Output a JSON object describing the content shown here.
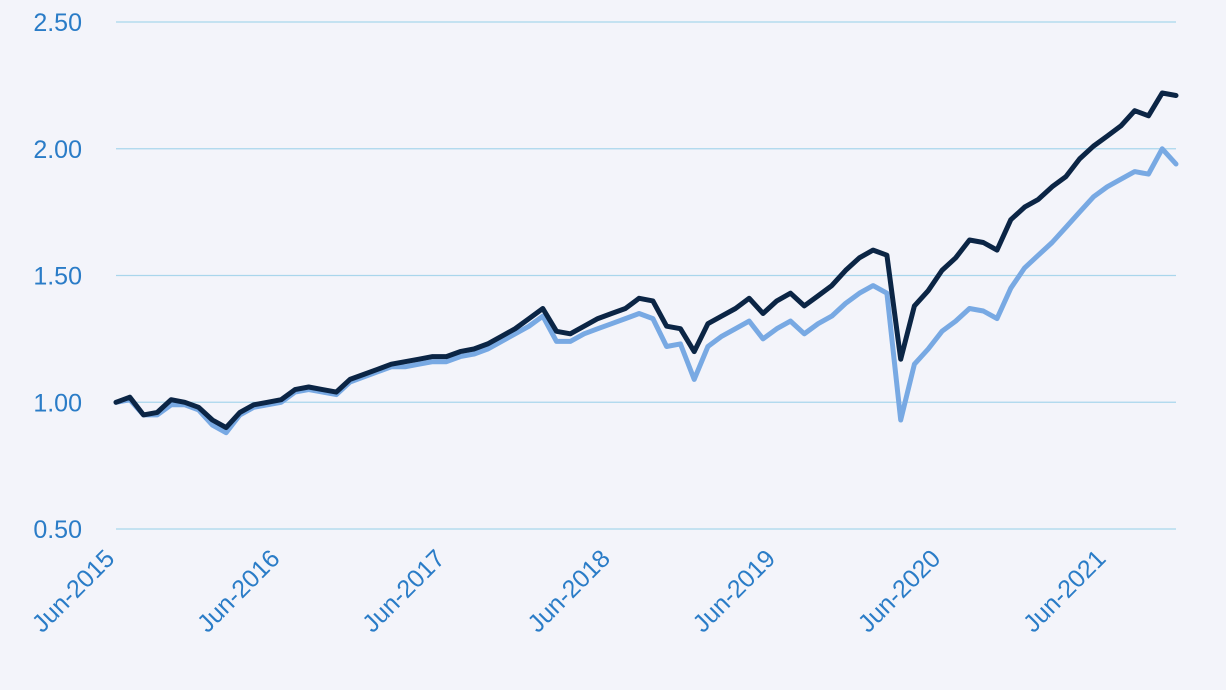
{
  "chart_data": {
    "type": "line",
    "title": "",
    "xlabel": "",
    "ylabel": "",
    "ylim": [
      0.5,
      2.5
    ],
    "y_ticks": [
      "0.50",
      "1.00",
      "1.50",
      "2.00",
      "2.50"
    ],
    "y_tick_values": [
      0.5,
      1.0,
      1.5,
      2.0,
      2.5
    ],
    "xlim": [
      "2015-06",
      "2021-11"
    ],
    "x_ticks": [
      "Jun-2015",
      "Jun-2016",
      "Jun-2017",
      "Jun-2018",
      "Jun-2019",
      "Jun-2020",
      "Jun-2021"
    ],
    "x_tick_dates": [
      "2015-06",
      "2016-06",
      "2017-06",
      "2018-06",
      "2019-06",
      "2020-06",
      "2021-06"
    ],
    "grid": true,
    "legend": "none",
    "x": [
      "2015-06",
      "2015-07",
      "2015-08",
      "2015-09",
      "2015-10",
      "2015-11",
      "2015-12",
      "2016-01",
      "2016-02",
      "2016-03",
      "2016-04",
      "2016-05",
      "2016-06",
      "2016-07",
      "2016-08",
      "2016-09",
      "2016-10",
      "2016-11",
      "2016-12",
      "2017-01",
      "2017-02",
      "2017-03",
      "2017-04",
      "2017-05",
      "2017-06",
      "2017-07",
      "2017-08",
      "2017-09",
      "2017-10",
      "2017-11",
      "2017-12",
      "2018-01",
      "2018-02",
      "2018-03",
      "2018-04",
      "2018-05",
      "2018-06",
      "2018-07",
      "2018-08",
      "2018-09",
      "2018-10",
      "2018-11",
      "2018-12",
      "2019-01",
      "2019-02",
      "2019-03",
      "2019-04",
      "2019-05",
      "2019-06",
      "2019-07",
      "2019-08",
      "2019-09",
      "2019-10",
      "2019-11",
      "2019-12",
      "2020-01",
      "2020-02",
      "2020-03",
      "2020-04",
      "2020-05",
      "2020-06",
      "2020-07",
      "2020-08",
      "2020-09",
      "2020-10",
      "2020-11",
      "2020-12",
      "2021-01",
      "2021-02",
      "2021-03",
      "2021-04",
      "2021-05",
      "2021-06",
      "2021-07",
      "2021-08",
      "2021-09",
      "2021-10",
      "2021-11"
    ],
    "series": [
      {
        "color": "#0b2545",
        "values": [
          1.0,
          1.02,
          0.95,
          0.96,
          1.01,
          1.0,
          0.98,
          0.93,
          0.9,
          0.96,
          0.99,
          1.0,
          1.01,
          1.05,
          1.06,
          1.05,
          1.04,
          1.09,
          1.11,
          1.13,
          1.15,
          1.16,
          1.17,
          1.18,
          1.18,
          1.2,
          1.21,
          1.23,
          1.26,
          1.29,
          1.33,
          1.37,
          1.28,
          1.27,
          1.3,
          1.33,
          1.35,
          1.37,
          1.41,
          1.4,
          1.3,
          1.29,
          1.2,
          1.31,
          1.34,
          1.37,
          1.41,
          1.35,
          1.4,
          1.43,
          1.38,
          1.42,
          1.46,
          1.52,
          1.57,
          1.6,
          1.58,
          1.17,
          1.38,
          1.44,
          1.52,
          1.57,
          1.64,
          1.63,
          1.6,
          1.72,
          1.77,
          1.8,
          1.85,
          1.89,
          1.96,
          2.01,
          2.05,
          2.09,
          2.15,
          2.13,
          2.22,
          2.21
        ]
      },
      {
        "color": "#78a9e3",
        "values": [
          1.0,
          1.01,
          0.95,
          0.95,
          0.99,
          0.99,
          0.97,
          0.91,
          0.88,
          0.95,
          0.98,
          0.99,
          1.0,
          1.04,
          1.05,
          1.04,
          1.03,
          1.08,
          1.1,
          1.12,
          1.14,
          1.14,
          1.15,
          1.16,
          1.16,
          1.18,
          1.19,
          1.21,
          1.24,
          1.27,
          1.3,
          1.34,
          1.24,
          1.24,
          1.27,
          1.29,
          1.31,
          1.33,
          1.35,
          1.33,
          1.22,
          1.23,
          1.09,
          1.22,
          1.26,
          1.29,
          1.32,
          1.25,
          1.29,
          1.32,
          1.27,
          1.31,
          1.34,
          1.39,
          1.43,
          1.46,
          1.43,
          0.93,
          1.15,
          1.21,
          1.28,
          1.32,
          1.37,
          1.36,
          1.33,
          1.45,
          1.53,
          1.58,
          1.63,
          1.69,
          1.75,
          1.81,
          1.85,
          1.88,
          1.91,
          1.9,
          2.0,
          1.94
        ]
      }
    ]
  }
}
